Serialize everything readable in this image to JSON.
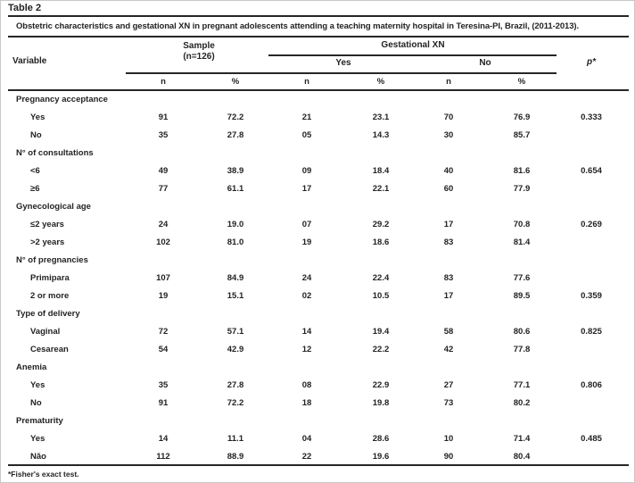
{
  "table_label": "Table 2",
  "title": "Obstetric characteristics and gestational XN in pregnant adolescents attending a teaching maternity hospital in Teresina-PI, Brazil, (2011-2013).",
  "header": {
    "variable": "Variable",
    "sample_line1": "Sample",
    "sample_line2": "(n=126)",
    "group": "Gestational XN",
    "yes": "Yes",
    "no": "No",
    "p": "p*",
    "cols": [
      "n",
      "%",
      "n",
      "%",
      "n",
      "%"
    ]
  },
  "rows": [
    {
      "label": "Pregnancy acceptance",
      "indent": false,
      "values": [
        "",
        "",
        "",
        "",
        "",
        ""
      ],
      "p": ""
    },
    {
      "label": "Yes",
      "indent": true,
      "values": [
        "91",
        "72.2",
        "21",
        "23.1",
        "70",
        "76.9"
      ],
      "p": "0.333"
    },
    {
      "label": "No",
      "indent": true,
      "values": [
        "35",
        "27.8",
        "05",
        "14.3",
        "30",
        "85.7"
      ],
      "p": ""
    },
    {
      "label": "N° of consultations",
      "indent": false,
      "values": [
        "",
        "",
        "",
        "",
        "",
        ""
      ],
      "p": ""
    },
    {
      "label": "<6",
      "indent": true,
      "values": [
        "49",
        "38.9",
        "09",
        "18.4",
        "40",
        "81.6"
      ],
      "p": "0.654"
    },
    {
      "label": "≥6",
      "indent": true,
      "values": [
        "77",
        "61.1",
        "17",
        "22.1",
        "60",
        "77.9"
      ],
      "p": ""
    },
    {
      "label": "Gynecological age",
      "indent": false,
      "values": [
        "",
        "",
        "",
        "",
        "",
        ""
      ],
      "p": ""
    },
    {
      "label": "≤2 years",
      "indent": true,
      "values": [
        "24",
        "19.0",
        "07",
        "29.2",
        "17",
        "70.8"
      ],
      "p": "0.269"
    },
    {
      "label": ">2 years",
      "indent": true,
      "values": [
        "102",
        "81.0",
        "19",
        "18.6",
        "83",
        "81.4"
      ],
      "p": ""
    },
    {
      "label": "N° of pregnancies",
      "indent": false,
      "values": [
        "",
        "",
        "",
        "",
        "",
        ""
      ],
      "p": ""
    },
    {
      "label": "Primipara",
      "indent": true,
      "values": [
        "107",
        "84.9",
        "24",
        "22.4",
        "83",
        "77.6"
      ],
      "p": ""
    },
    {
      "label": "2 or more",
      "indent": true,
      "values": [
        "19",
        "15.1",
        "02",
        "10.5",
        "17",
        "89.5"
      ],
      "p": "0.359"
    },
    {
      "label": "Type of delivery",
      "indent": false,
      "values": [
        "",
        "",
        "",
        "",
        "",
        ""
      ],
      "p": ""
    },
    {
      "label": "Vaginal",
      "indent": true,
      "values": [
        "72",
        "57.1",
        "14",
        "19.4",
        "58",
        "80.6"
      ],
      "p": "0.825"
    },
    {
      "label": "Cesarean",
      "indent": true,
      "values": [
        "54",
        "42.9",
        "12",
        "22.2",
        "42",
        "77.8"
      ],
      "p": ""
    },
    {
      "label": "Anemia",
      "indent": false,
      "values": [
        "",
        "",
        "",
        "",
        "",
        ""
      ],
      "p": ""
    },
    {
      "label": "Yes",
      "indent": true,
      "values": [
        "35",
        "27.8",
        "08",
        "22.9",
        "27",
        "77.1"
      ],
      "p": "0.806"
    },
    {
      "label": "No",
      "indent": true,
      "values": [
        "91",
        "72.2",
        "18",
        "19.8",
        "73",
        "80.2"
      ],
      "p": ""
    },
    {
      "label": "Prematurity",
      "indent": false,
      "values": [
        "",
        "",
        "",
        "",
        "",
        ""
      ],
      "p": ""
    },
    {
      "label": "Yes",
      "indent": true,
      "values": [
        "14",
        "11.1",
        "04",
        "28.6",
        "10",
        "71.4"
      ],
      "p": "0.485"
    },
    {
      "label": "Não",
      "indent": true,
      "values": [
        "112",
        "88.9",
        "22",
        "19.6",
        "90",
        "80.4"
      ],
      "p": ""
    }
  ],
  "footnote": "*Fisher's exact test.",
  "colors": {
    "text": "#232323",
    "rule": "#262626",
    "outer_border": "#c8c8c8",
    "background": "#ffffff"
  }
}
